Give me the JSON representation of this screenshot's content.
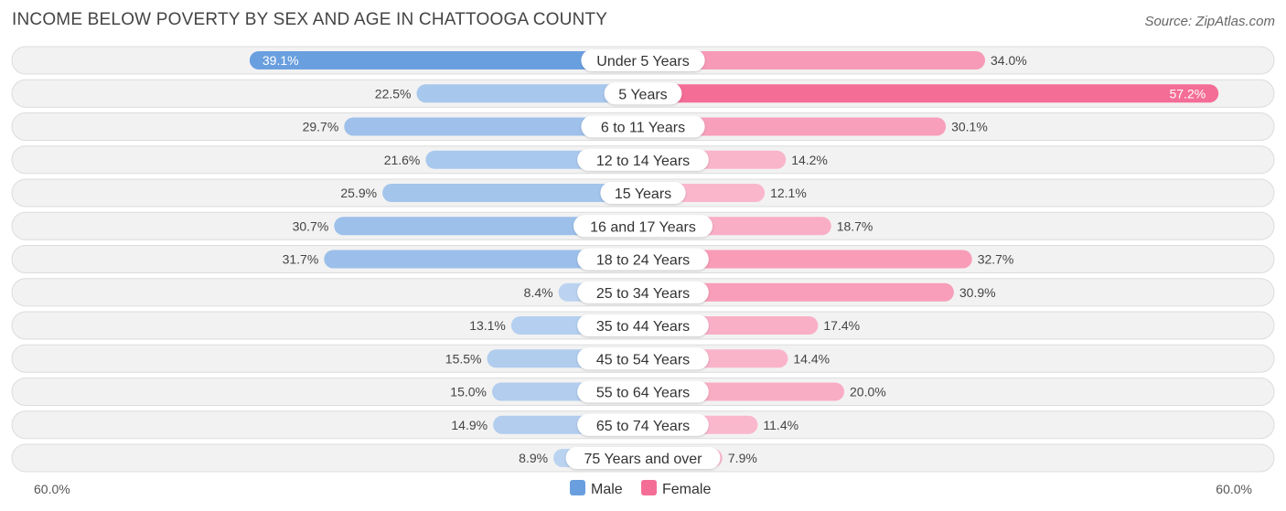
{
  "header": {
    "title": "INCOME BELOW POVERTY BY SEX AND AGE IN CHATTOOGA COUNTY",
    "source": "Source: ZipAtlas.com"
  },
  "chart_data": {
    "type": "bar",
    "orientation": "horizontal-diverging",
    "title": "INCOME BELOW POVERTY BY SEX AND AGE IN CHATTOOGA COUNTY",
    "categories": [
      "Under 5 Years",
      "5 Years",
      "6 to 11 Years",
      "12 to 14 Years",
      "15 Years",
      "16 and 17 Years",
      "18 to 24 Years",
      "25 to 34 Years",
      "35 to 44 Years",
      "45 to 54 Years",
      "55 to 64 Years",
      "65 to 74 Years",
      "75 Years and over"
    ],
    "series": [
      {
        "name": "Male",
        "color": "#6a9fdf",
        "values": [
          39.1,
          22.5,
          29.7,
          21.6,
          25.9,
          30.7,
          31.7,
          8.4,
          13.1,
          15.5,
          15.0,
          14.9,
          8.9
        ]
      },
      {
        "name": "Female",
        "color": "#f46d97",
        "values": [
          34.0,
          57.2,
          30.1,
          14.2,
          12.1,
          18.7,
          32.7,
          30.9,
          17.4,
          14.4,
          20.0,
          11.4,
          7.9
        ]
      }
    ],
    "value_labels": {
      "male": [
        "39.1%",
        "22.5%",
        "29.7%",
        "21.6%",
        "25.9%",
        "30.7%",
        "31.7%",
        "8.4%",
        "13.1%",
        "15.5%",
        "15.0%",
        "14.9%",
        "8.9%"
      ],
      "female": [
        "34.0%",
        "57.2%",
        "30.1%",
        "14.2%",
        "12.1%",
        "18.7%",
        "32.7%",
        "30.9%",
        "17.4%",
        "14.4%",
        "20.0%",
        "11.4%",
        "7.9%"
      ]
    },
    "axis": {
      "min_label": "60.0%",
      "max_label": "60.0%",
      "range": [
        -60,
        60
      ]
    },
    "legend": {
      "position": "bottom-center",
      "entries": [
        "Male",
        "Female"
      ]
    }
  }
}
